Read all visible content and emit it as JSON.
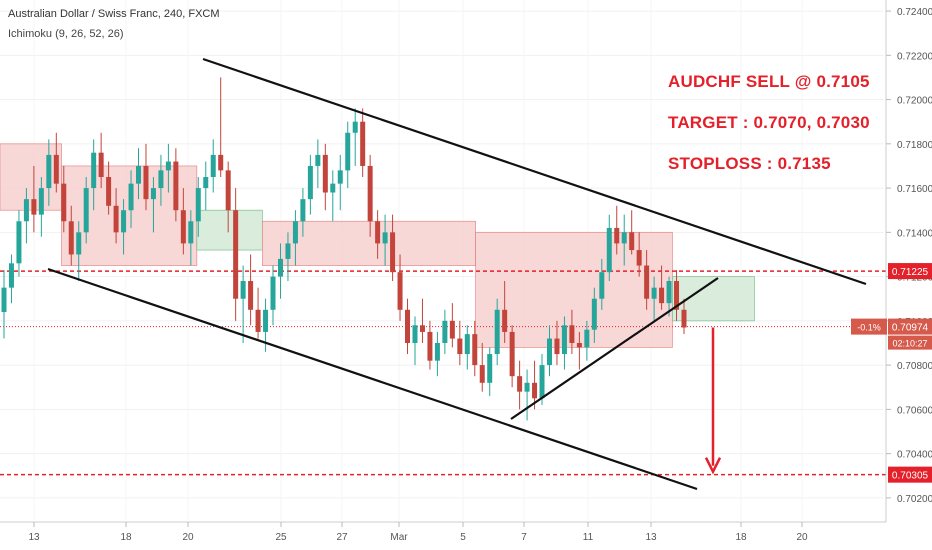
{
  "header": {
    "title": "Australian Dollar / Swiss Franc, 240, FXCM",
    "indicator": "Ichimoku (9, 26, 52, 26)"
  },
  "annotations": [
    "AUDCHF SELL @ 0.7105",
    "TARGET : 0.7070, 0.7030",
    "STOPLOSS : 0.7135"
  ],
  "colors": {
    "up": "#26a69a",
    "down": "#c2443b",
    "cloud_bear": "#f8d3d3",
    "cloud_bull": "#d7ebd9",
    "level": "#e4202a",
    "trend": "#111111",
    "axis_text": "#555555"
  },
  "chart_data": {
    "type": "candlestick",
    "y_axis": {
      "min": 0.701,
      "max": 0.7245,
      "ticks": [
        "0.72400",
        "0.72200",
        "0.72000",
        "0.71800",
        "0.71600",
        "0.71400",
        "0.71200",
        "0.71000",
        "0.70800",
        "0.70600",
        "0.70400",
        "0.70200"
      ]
    },
    "x_axis": {
      "ticks": [
        "13",
        "18",
        "20",
        "25",
        "27",
        "Mar",
        "5",
        "7",
        "11",
        "13",
        "18",
        "20"
      ]
    },
    "price_labels": [
      {
        "value": 0.71225,
        "text": "0.71225",
        "style": "level"
      },
      {
        "value": 0.70974,
        "text": "0.70974",
        "style": "current",
        "change": "-0.1%",
        "countdown": "02:10:27"
      },
      {
        "value": 0.70305,
        "text": "0.70305",
        "style": "level"
      }
    ],
    "horizontal_levels": [
      0.71225,
      0.70974,
      0.70305
    ],
    "trend_lines": [
      {
        "name": "upper channel",
        "from": [
          "bar0",
          0.7217
        ],
        "to": [
          "right",
          0.7117
        ]
      },
      {
        "name": "lower channel",
        "from": [
          "bar0",
          0.712
        ],
        "to": [
          "right",
          0.7021
        ]
      },
      {
        "name": "rising support",
        "from": [
          "bar0",
          0.7053
        ],
        "to": [
          "right",
          0.7119
        ]
      }
    ],
    "candles_source": "approximate OHLC read from the chart",
    "candles": [
      [
        0.7104,
        0.7123,
        0.7092,
        0.7115
      ],
      [
        0.7115,
        0.713,
        0.7108,
        0.7126
      ],
      [
        0.7126,
        0.715,
        0.712,
        0.7145
      ],
      [
        0.7145,
        0.716,
        0.7135,
        0.7155
      ],
      [
        0.7155,
        0.717,
        0.714,
        0.7148
      ],
      [
        0.7148,
        0.7165,
        0.7138,
        0.716
      ],
      [
        0.716,
        0.7182,
        0.7152,
        0.7175
      ],
      [
        0.7175,
        0.7185,
        0.7158,
        0.7162
      ],
      [
        0.7162,
        0.717,
        0.714,
        0.7145
      ],
      [
        0.7145,
        0.7152,
        0.7125,
        0.713
      ],
      [
        0.713,
        0.7145,
        0.7118,
        0.714
      ],
      [
        0.714,
        0.7165,
        0.7135,
        0.716
      ],
      [
        0.716,
        0.7182,
        0.715,
        0.7176
      ],
      [
        0.7176,
        0.7185,
        0.716,
        0.7165
      ],
      [
        0.7165,
        0.7172,
        0.7148,
        0.7152
      ],
      [
        0.7152,
        0.716,
        0.7135,
        0.714
      ],
      [
        0.714,
        0.7155,
        0.713,
        0.715
      ],
      [
        0.715,
        0.7168,
        0.7142,
        0.7162
      ],
      [
        0.7162,
        0.7178,
        0.7155,
        0.717
      ],
      [
        0.717,
        0.718,
        0.715,
        0.7155
      ],
      [
        0.7155,
        0.7165,
        0.714,
        0.716
      ],
      [
        0.716,
        0.7175,
        0.7152,
        0.7168
      ],
      [
        0.7168,
        0.718,
        0.7158,
        0.7172
      ],
      [
        0.7172,
        0.7178,
        0.7145,
        0.715
      ],
      [
        0.715,
        0.716,
        0.713,
        0.7135
      ],
      [
        0.7135,
        0.715,
        0.7125,
        0.7145
      ],
      [
        0.7145,
        0.7165,
        0.7138,
        0.716
      ],
      [
        0.716,
        0.7172,
        0.715,
        0.7165
      ],
      [
        0.7165,
        0.7182,
        0.7158,
        0.7175
      ],
      [
        0.7175,
        0.721,
        0.7165,
        0.7168
      ],
      [
        0.7168,
        0.7172,
        0.714,
        0.715
      ],
      [
        0.715,
        0.716,
        0.71,
        0.711
      ],
      [
        0.711,
        0.7125,
        0.709,
        0.7118
      ],
      [
        0.7118,
        0.713,
        0.7098,
        0.7105
      ],
      [
        0.7105,
        0.7115,
        0.7092,
        0.7095
      ],
      [
        0.7095,
        0.711,
        0.7086,
        0.7105
      ],
      [
        0.7105,
        0.7125,
        0.7098,
        0.712
      ],
      [
        0.712,
        0.7135,
        0.711,
        0.7128
      ],
      [
        0.7128,
        0.714,
        0.7118,
        0.7135
      ],
      [
        0.7135,
        0.715,
        0.7125,
        0.7145
      ],
      [
        0.7145,
        0.716,
        0.7138,
        0.7155
      ],
      [
        0.7155,
        0.7175,
        0.7148,
        0.717
      ],
      [
        0.717,
        0.7182,
        0.716,
        0.7175
      ],
      [
        0.7175,
        0.718,
        0.715,
        0.7158
      ],
      [
        0.7158,
        0.7168,
        0.7145,
        0.7162
      ],
      [
        0.7162,
        0.7175,
        0.715,
        0.7168
      ],
      [
        0.7168,
        0.719,
        0.716,
        0.7185
      ],
      [
        0.7185,
        0.7196,
        0.717,
        0.719
      ],
      [
        0.719,
        0.7196,
        0.7165,
        0.717
      ],
      [
        0.717,
        0.7175,
        0.7138,
        0.7145
      ],
      [
        0.7145,
        0.715,
        0.7128,
        0.7135
      ],
      [
        0.7135,
        0.7148,
        0.7125,
        0.714
      ],
      [
        0.714,
        0.7148,
        0.7118,
        0.7122
      ],
      [
        0.7122,
        0.713,
        0.71,
        0.7105
      ],
      [
        0.7105,
        0.711,
        0.7085,
        0.709
      ],
      [
        0.709,
        0.7102,
        0.708,
        0.7098
      ],
      [
        0.7098,
        0.711,
        0.709,
        0.7095
      ],
      [
        0.7095,
        0.71,
        0.7078,
        0.7082
      ],
      [
        0.7082,
        0.7095,
        0.7075,
        0.709
      ],
      [
        0.709,
        0.7105,
        0.7085,
        0.71
      ],
      [
        0.71,
        0.7108,
        0.7088,
        0.7092
      ],
      [
        0.7092,
        0.71,
        0.708,
        0.7085
      ],
      [
        0.7085,
        0.7098,
        0.7078,
        0.7094
      ],
      [
        0.7094,
        0.71,
        0.7075,
        0.708
      ],
      [
        0.708,
        0.709,
        0.7068,
        0.7072
      ],
      [
        0.7072,
        0.7088,
        0.7066,
        0.7085
      ],
      [
        0.7085,
        0.711,
        0.708,
        0.7105
      ],
      [
        0.7105,
        0.7118,
        0.709,
        0.7095
      ],
      [
        0.7095,
        0.7098,
        0.707,
        0.7075
      ],
      [
        0.7075,
        0.7082,
        0.706,
        0.7068
      ],
      [
        0.7068,
        0.7078,
        0.7055,
        0.7072
      ],
      [
        0.7072,
        0.7082,
        0.706,
        0.7065
      ],
      [
        0.7065,
        0.7085,
        0.7062,
        0.708
      ],
      [
        0.708,
        0.7098,
        0.7075,
        0.7092
      ],
      [
        0.7092,
        0.71,
        0.708,
        0.7085
      ],
      [
        0.7085,
        0.7102,
        0.7078,
        0.7098
      ],
      [
        0.7098,
        0.7105,
        0.7085,
        0.709
      ],
      [
        0.709,
        0.7095,
        0.7078,
        0.7088
      ],
      [
        0.7088,
        0.71,
        0.7082,
        0.7096
      ],
      [
        0.7096,
        0.7115,
        0.709,
        0.711
      ],
      [
        0.711,
        0.7128,
        0.7105,
        0.7122
      ],
      [
        0.7122,
        0.7148,
        0.7118,
        0.7142
      ],
      [
        0.7142,
        0.7152,
        0.713,
        0.7135
      ],
      [
        0.7135,
        0.7148,
        0.7125,
        0.714
      ],
      [
        0.714,
        0.715,
        0.713,
        0.7132
      ],
      [
        0.7132,
        0.714,
        0.712,
        0.7125
      ],
      [
        0.7125,
        0.7132,
        0.7105,
        0.711
      ],
      [
        0.711,
        0.712,
        0.71,
        0.7115
      ],
      [
        0.7115,
        0.7125,
        0.7105,
        0.7108
      ],
      [
        0.7108,
        0.712,
        0.7102,
        0.7118
      ],
      [
        0.7118,
        0.7123,
        0.71,
        0.7105
      ],
      [
        0.7105,
        0.711,
        0.7094,
        0.7097
      ]
    ],
    "ichimoku": {
      "cloud_segments": [
        {
          "trend": "bear",
          "x_from": 0.0,
          "x_to": 0.075,
          "top": 0.718,
          "bottom": 0.715
        },
        {
          "trend": "bear",
          "x_from": 0.075,
          "x_to": 0.24,
          "top": 0.717,
          "bottom": 0.7125
        },
        {
          "trend": "bull",
          "x_from": 0.24,
          "x_to": 0.32,
          "top": 0.715,
          "bottom": 0.7132
        },
        {
          "trend": "bear",
          "x_from": 0.32,
          "x_to": 0.58,
          "top": 0.7145,
          "bottom": 0.7125
        },
        {
          "trend": "bear",
          "x_from": 0.58,
          "x_to": 0.82,
          "top": 0.714,
          "bottom": 0.7088
        },
        {
          "trend": "bull",
          "x_from": 0.82,
          "x_to": 0.92,
          "top": 0.712,
          "bottom": 0.71
        }
      ]
    },
    "projection_arrow": {
      "from": 0.7097,
      "to": 0.703
    }
  }
}
